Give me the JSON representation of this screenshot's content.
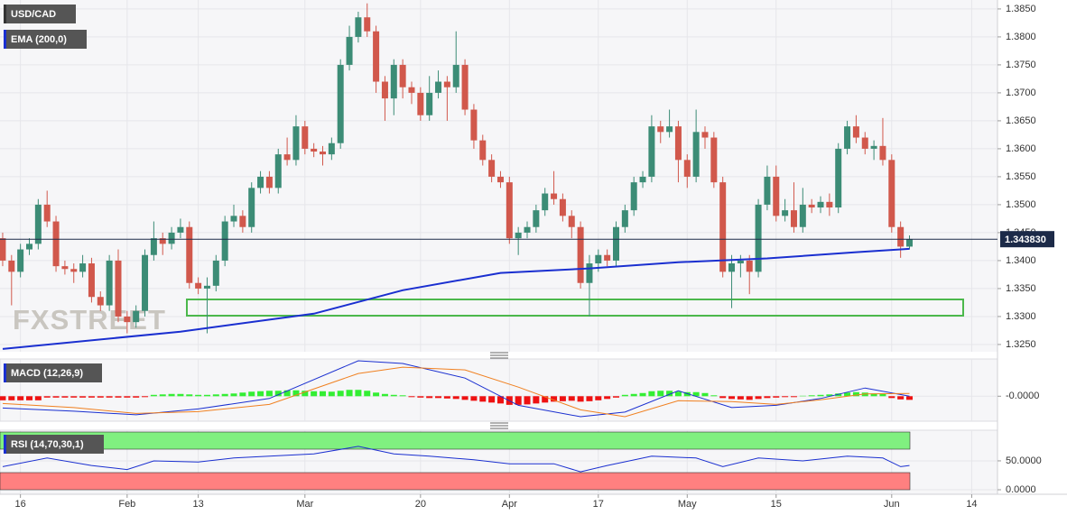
{
  "chart_data": [
    {
      "type": "candlestick",
      "title": "USD/CAD",
      "watermark": "FXSTREET",
      "up_color": "#3c8c76",
      "down_color": "#d1584c",
      "xlim": [
        -0.3,
        111.9
      ],
      "ylim": [
        1.3237,
        1.3866
      ],
      "yticks": [
        {
          "value": 1.325,
          "label": "1.3250"
        },
        {
          "value": 1.33,
          "label": "1.3300"
        },
        {
          "value": 1.335,
          "label": "1.3350"
        },
        {
          "value": 1.34,
          "label": "1.3400"
        },
        {
          "value": 1.345,
          "label": "1.3450"
        },
        {
          "value": 1.35,
          "label": "1.3500"
        },
        {
          "value": 1.355,
          "label": "1.3550"
        },
        {
          "value": 1.36,
          "label": "1.3600"
        },
        {
          "value": 1.365,
          "label": "1.3650"
        },
        {
          "value": 1.37,
          "label": "1.3700"
        },
        {
          "value": 1.375,
          "label": "1.3750"
        },
        {
          "value": 1.38,
          "label": "1.3800"
        },
        {
          "value": 1.385,
          "label": "1.3850"
        }
      ],
      "x": [
        0,
        1,
        2,
        3,
        4,
        5,
        6,
        7,
        8,
        9,
        10,
        11,
        12,
        13,
        14,
        15,
        16,
        17,
        18,
        19,
        20,
        21,
        22,
        23,
        24,
        25,
        26,
        27,
        28,
        29,
        30,
        31,
        32,
        33,
        34,
        35,
        36,
        37,
        38,
        39,
        40,
        41,
        42,
        43,
        44,
        45,
        46,
        47,
        48,
        49,
        50,
        51,
        52,
        53,
        54,
        55,
        56,
        57,
        58,
        59,
        60,
        61,
        62,
        63,
        64,
        65,
        66,
        67,
        68,
        69,
        70,
        71,
        72,
        73,
        74,
        75,
        76,
        77,
        78,
        79,
        80,
        81,
        82,
        83,
        84,
        85,
        86,
        87,
        88,
        89,
        90,
        91,
        92,
        93,
        94,
        95,
        96,
        97,
        98,
        99,
        100,
        101,
        102
      ],
      "open": [
        1.344,
        1.34,
        1.338,
        1.342,
        1.343,
        1.35,
        1.347,
        1.339,
        1.3385,
        1.338,
        1.3395,
        1.3335,
        1.332,
        1.34,
        1.33,
        1.329,
        1.331,
        1.341,
        1.344,
        1.343,
        1.345,
        1.346,
        1.336,
        1.335,
        1.3355,
        1.34,
        1.347,
        1.348,
        1.346,
        1.353,
        1.355,
        1.353,
        1.359,
        1.358,
        1.364,
        1.36,
        1.3595,
        1.359,
        1.361,
        1.375,
        1.38,
        1.3835,
        1.381,
        1.372,
        1.369,
        1.375,
        1.371,
        1.37,
        1.366,
        1.37,
        1.372,
        1.371,
        1.375,
        1.367,
        1.3615,
        1.358,
        1.355,
        1.354,
        1.344,
        1.345,
        1.346,
        1.349,
        1.352,
        1.351,
        1.348,
        1.346,
        1.336,
        1.3395,
        1.341,
        1.34,
        1.346,
        1.349,
        1.354,
        1.355,
        1.364,
        1.363,
        1.364,
        1.358,
        1.355,
        1.363,
        1.362,
        1.354,
        1.338,
        1.3395,
        1.34,
        1.338,
        1.35,
        1.355,
        1.348,
        1.349,
        1.346,
        1.35,
        1.3495,
        1.3505,
        1.3495,
        1.36,
        1.364,
        1.362,
        1.36,
        1.3605,
        1.358,
        1.346,
        1.3425
      ],
      "high": [
        1.345,
        1.341,
        1.343,
        1.344,
        1.351,
        1.3525,
        1.348,
        1.34,
        1.3395,
        1.341,
        1.3405,
        1.3345,
        1.341,
        1.342,
        1.331,
        1.332,
        1.342,
        1.347,
        1.345,
        1.346,
        1.3475,
        1.347,
        1.337,
        1.337,
        1.341,
        1.348,
        1.35,
        1.349,
        1.354,
        1.356,
        1.356,
        1.36,
        1.362,
        1.366,
        1.365,
        1.361,
        1.3605,
        1.362,
        1.376,
        1.382,
        1.3845,
        1.386,
        1.382,
        1.373,
        1.376,
        1.376,
        1.372,
        1.371,
        1.373,
        1.374,
        1.373,
        1.381,
        1.376,
        1.368,
        1.3625,
        1.359,
        1.356,
        1.355,
        1.346,
        1.347,
        1.35,
        1.353,
        1.356,
        1.352,
        1.349,
        1.347,
        1.341,
        1.342,
        1.342,
        1.347,
        1.35,
        1.355,
        1.356,
        1.366,
        1.365,
        1.367,
        1.365,
        1.359,
        1.367,
        1.364,
        1.363,
        1.355,
        1.341,
        1.341,
        1.341,
        1.351,
        1.357,
        1.357,
        1.351,
        1.354,
        1.353,
        1.351,
        1.3515,
        1.352,
        1.361,
        1.365,
        1.366,
        1.363,
        1.3615,
        1.3655,
        1.359,
        1.347,
        1.3445
      ],
      "low": [
        1.339,
        1.332,
        1.337,
        1.341,
        1.342,
        1.346,
        1.338,
        1.3375,
        1.336,
        1.337,
        1.3325,
        1.331,
        1.331,
        1.329,
        1.327,
        1.328,
        1.33,
        1.34,
        1.341,
        1.342,
        1.344,
        1.335,
        1.334,
        1.327,
        1.3345,
        1.339,
        1.346,
        1.345,
        1.345,
        1.352,
        1.352,
        1.352,
        1.357,
        1.357,
        1.359,
        1.3585,
        1.357,
        1.358,
        1.36,
        1.374,
        1.379,
        1.38,
        1.37,
        1.365,
        1.366,
        1.369,
        1.368,
        1.365,
        1.365,
        1.369,
        1.365,
        1.37,
        1.366,
        1.36,
        1.357,
        1.354,
        1.353,
        1.343,
        1.341,
        1.344,
        1.345,
        1.348,
        1.35,
        1.347,
        1.344,
        1.335,
        1.33,
        1.338,
        1.339,
        1.339,
        1.345,
        1.348,
        1.353,
        1.354,
        1.361,
        1.362,
        1.354,
        1.353,
        1.354,
        1.36,
        1.353,
        1.337,
        1.3315,
        1.337,
        1.334,
        1.337,
        1.349,
        1.347,
        1.347,
        1.345,
        1.345,
        1.3485,
        1.3485,
        1.348,
        1.3485,
        1.359,
        1.361,
        1.359,
        1.358,
        1.357,
        1.345,
        1.3405,
        1.342
      ],
      "close": [
        1.34,
        1.338,
        1.342,
        1.343,
        1.35,
        1.347,
        1.339,
        1.3385,
        1.338,
        1.3395,
        1.3335,
        1.332,
        1.34,
        1.33,
        1.329,
        1.331,
        1.341,
        1.344,
        1.343,
        1.345,
        1.346,
        1.336,
        1.335,
        1.3355,
        1.34,
        1.347,
        1.348,
        1.346,
        1.353,
        1.355,
        1.353,
        1.359,
        1.358,
        1.364,
        1.36,
        1.3595,
        1.359,
        1.361,
        1.375,
        1.38,
        1.3835,
        1.381,
        1.372,
        1.369,
        1.375,
        1.371,
        1.37,
        1.366,
        1.37,
        1.372,
        1.371,
        1.375,
        1.367,
        1.3615,
        1.358,
        1.355,
        1.354,
        1.344,
        1.345,
        1.346,
        1.349,
        1.352,
        1.351,
        1.348,
        1.346,
        1.336,
        1.3395,
        1.341,
        1.34,
        1.346,
        1.349,
        1.354,
        1.355,
        1.364,
        1.363,
        1.364,
        1.358,
        1.355,
        1.363,
        1.362,
        1.354,
        1.338,
        1.3395,
        1.34,
        1.338,
        1.35,
        1.355,
        1.348,
        1.349,
        1.346,
        1.35,
        1.3495,
        1.3505,
        1.3495,
        1.36,
        1.364,
        1.362,
        1.36,
        1.3605,
        1.358,
        1.346,
        1.3425,
        1.3438
      ],
      "ema": {
        "name": "EMA (200,0)",
        "color": "#1a2fd0",
        "x": [
          0,
          20,
          35,
          45,
          56,
          66,
          76,
          86,
          96,
          102
        ],
        "values": [
          1.3242,
          1.3273,
          1.3305,
          1.3347,
          1.3378,
          1.3386,
          1.3397,
          1.3404,
          1.3415,
          1.3421
        ]
      },
      "last_price": {
        "value": 1.34383,
        "label": "1.343830"
      }
    },
    {
      "type": "macd",
      "name": "MACD (12,26,9)",
      "xlim": [
        -0.3,
        111.9
      ],
      "ylim": [
        -0.0055,
        0.0082
      ],
      "yticks": [
        {
          "value": 0,
          "label": "-0.0000"
        }
      ],
      "histogram": {
        "up_color": "#33ee33",
        "down_color": "#ee1111",
        "x": [
          0,
          1,
          2,
          3,
          4,
          5,
          6,
          7,
          8,
          9,
          10,
          11,
          12,
          13,
          14,
          15,
          16,
          17,
          18,
          19,
          20,
          21,
          22,
          23,
          24,
          25,
          26,
          27,
          28,
          29,
          30,
          31,
          32,
          33,
          34,
          35,
          36,
          37,
          38,
          39,
          40,
          41,
          42,
          43,
          44,
          45,
          46,
          47,
          48,
          49,
          50,
          51,
          52,
          53,
          54,
          55,
          56,
          57,
          58,
          59,
          60,
          61,
          62,
          63,
          64,
          65,
          66,
          67,
          68,
          69,
          70,
          71,
          72,
          73,
          74,
          75,
          76,
          77,
          78,
          79,
          80,
          81,
          82,
          83,
          84,
          85,
          86,
          87,
          88,
          89,
          90,
          91,
          92,
          93,
          94,
          95,
          96,
          97,
          98,
          99,
          100,
          101,
          102
        ],
        "values": [
          -0.0009,
          -0.0009,
          -0.0009,
          -0.0009,
          -0.0009,
          -0.0003,
          -0.0003,
          -0.0003,
          -0.0003,
          -0.0003,
          -0.0003,
          -0.0003,
          -0.0003,
          -0.0003,
          -0.0003,
          -0.0003,
          -0.0002,
          0.0003,
          0.0004,
          0.0005,
          0.0005,
          0.0004,
          0.0003,
          0.0003,
          0.0004,
          0.0005,
          0.0006,
          0.0008,
          0.001,
          0.0011,
          0.0012,
          0.0012,
          0.0013,
          0.0013,
          0.0012,
          0.0011,
          0.0011,
          0.001,
          0.0012,
          0.0014,
          0.0014,
          0.0012,
          0.0008,
          0.0005,
          0.0003,
          0.0002,
          -0.0002,
          -0.0003,
          -0.0004,
          -0.0004,
          -0.0005,
          -0.0006,
          -0.0008,
          -0.001,
          -0.0012,
          -0.0014,
          -0.0016,
          -0.0019,
          -0.0019,
          -0.0018,
          -0.0016,
          -0.0014,
          -0.0012,
          -0.0011,
          -0.001,
          -0.0012,
          -0.0011,
          -0.0009,
          -0.0006,
          -0.0003,
          0.0003,
          0.0005,
          0.0007,
          0.0011,
          0.0012,
          0.0012,
          0.001,
          0.0009,
          0.0009,
          0.0007,
          0.0002,
          -0.0004,
          -0.0006,
          -0.0007,
          -0.0008,
          -0.0006,
          -0.0004,
          -0.0003,
          -0.0002,
          -0.0002,
          0.0001,
          0.0002,
          0.0003,
          0.0004,
          0.0006,
          0.0008,
          0.0009,
          0.0008,
          0.0006,
          0.0005,
          -0.0004,
          -0.0007,
          -0.0008
        ]
      },
      "macd": {
        "color": "#1a2fd0",
        "x": [
          0,
          8,
          15,
          22,
          30,
          40,
          45,
          52,
          58,
          65,
          70,
          76,
          82,
          87,
          92,
          97,
          102
        ],
        "values": [
          -0.0026,
          -0.0033,
          -0.0041,
          -0.0028,
          -0.0005,
          0.0078,
          0.0072,
          0.004,
          -0.002,
          -0.0045,
          -0.0035,
          0.0012,
          -0.0025,
          -0.002,
          -0.0005,
          0.0018,
          0.0
        ]
      },
      "signal": {
        "color": "#f08020",
        "x": [
          0,
          8,
          15,
          22,
          30,
          40,
          45,
          52,
          58,
          65,
          70,
          76,
          82,
          87,
          92,
          97,
          102
        ],
        "values": [
          -0.0016,
          -0.0025,
          -0.0038,
          -0.0034,
          -0.0018,
          0.005,
          0.0064,
          0.0058,
          0.002,
          -0.003,
          -0.0045,
          -0.001,
          -0.0012,
          -0.0018,
          -0.0008,
          0.0005,
          0.0006
        ]
      }
    },
    {
      "type": "rsi",
      "name": "RSI (14,70,30,1)",
      "xlim": [
        -0.3,
        111.9
      ],
      "ylim": [
        -7.8,
        103
      ],
      "yticks": [
        {
          "value": 50,
          "label": "50.0000"
        },
        {
          "value": 0,
          "label": "0.0000"
        }
      ],
      "xticks": [
        {
          "value": 2,
          "label": "16"
        },
        {
          "value": 14,
          "label": "Feb"
        },
        {
          "value": 22,
          "label": "13"
        },
        {
          "value": 34,
          "label": "Mar"
        },
        {
          "value": 47,
          "label": "20"
        },
        {
          "value": 57,
          "label": "Apr"
        },
        {
          "value": 67,
          "label": "17"
        },
        {
          "value": 77,
          "label": "May"
        },
        {
          "value": 87,
          "label": "15"
        },
        {
          "value": 100,
          "label": "Jun"
        },
        {
          "value": 109,
          "label": "14"
        }
      ],
      "color": "#1a2fd0",
      "x": [
        0,
        5,
        10,
        14,
        17,
        22,
        26,
        30,
        35,
        40,
        44,
        48,
        53,
        57,
        62,
        65,
        68,
        73,
        78,
        81,
        85,
        90,
        95,
        99,
        101,
        102
      ],
      "values": [
        40,
        55,
        42,
        35,
        50,
        48,
        55,
        58,
        62,
        75,
        62,
        58,
        52,
        45,
        45,
        31,
        42,
        58,
        55,
        40,
        55,
        50,
        58,
        55,
        40,
        42
      ]
    }
  ]
}
